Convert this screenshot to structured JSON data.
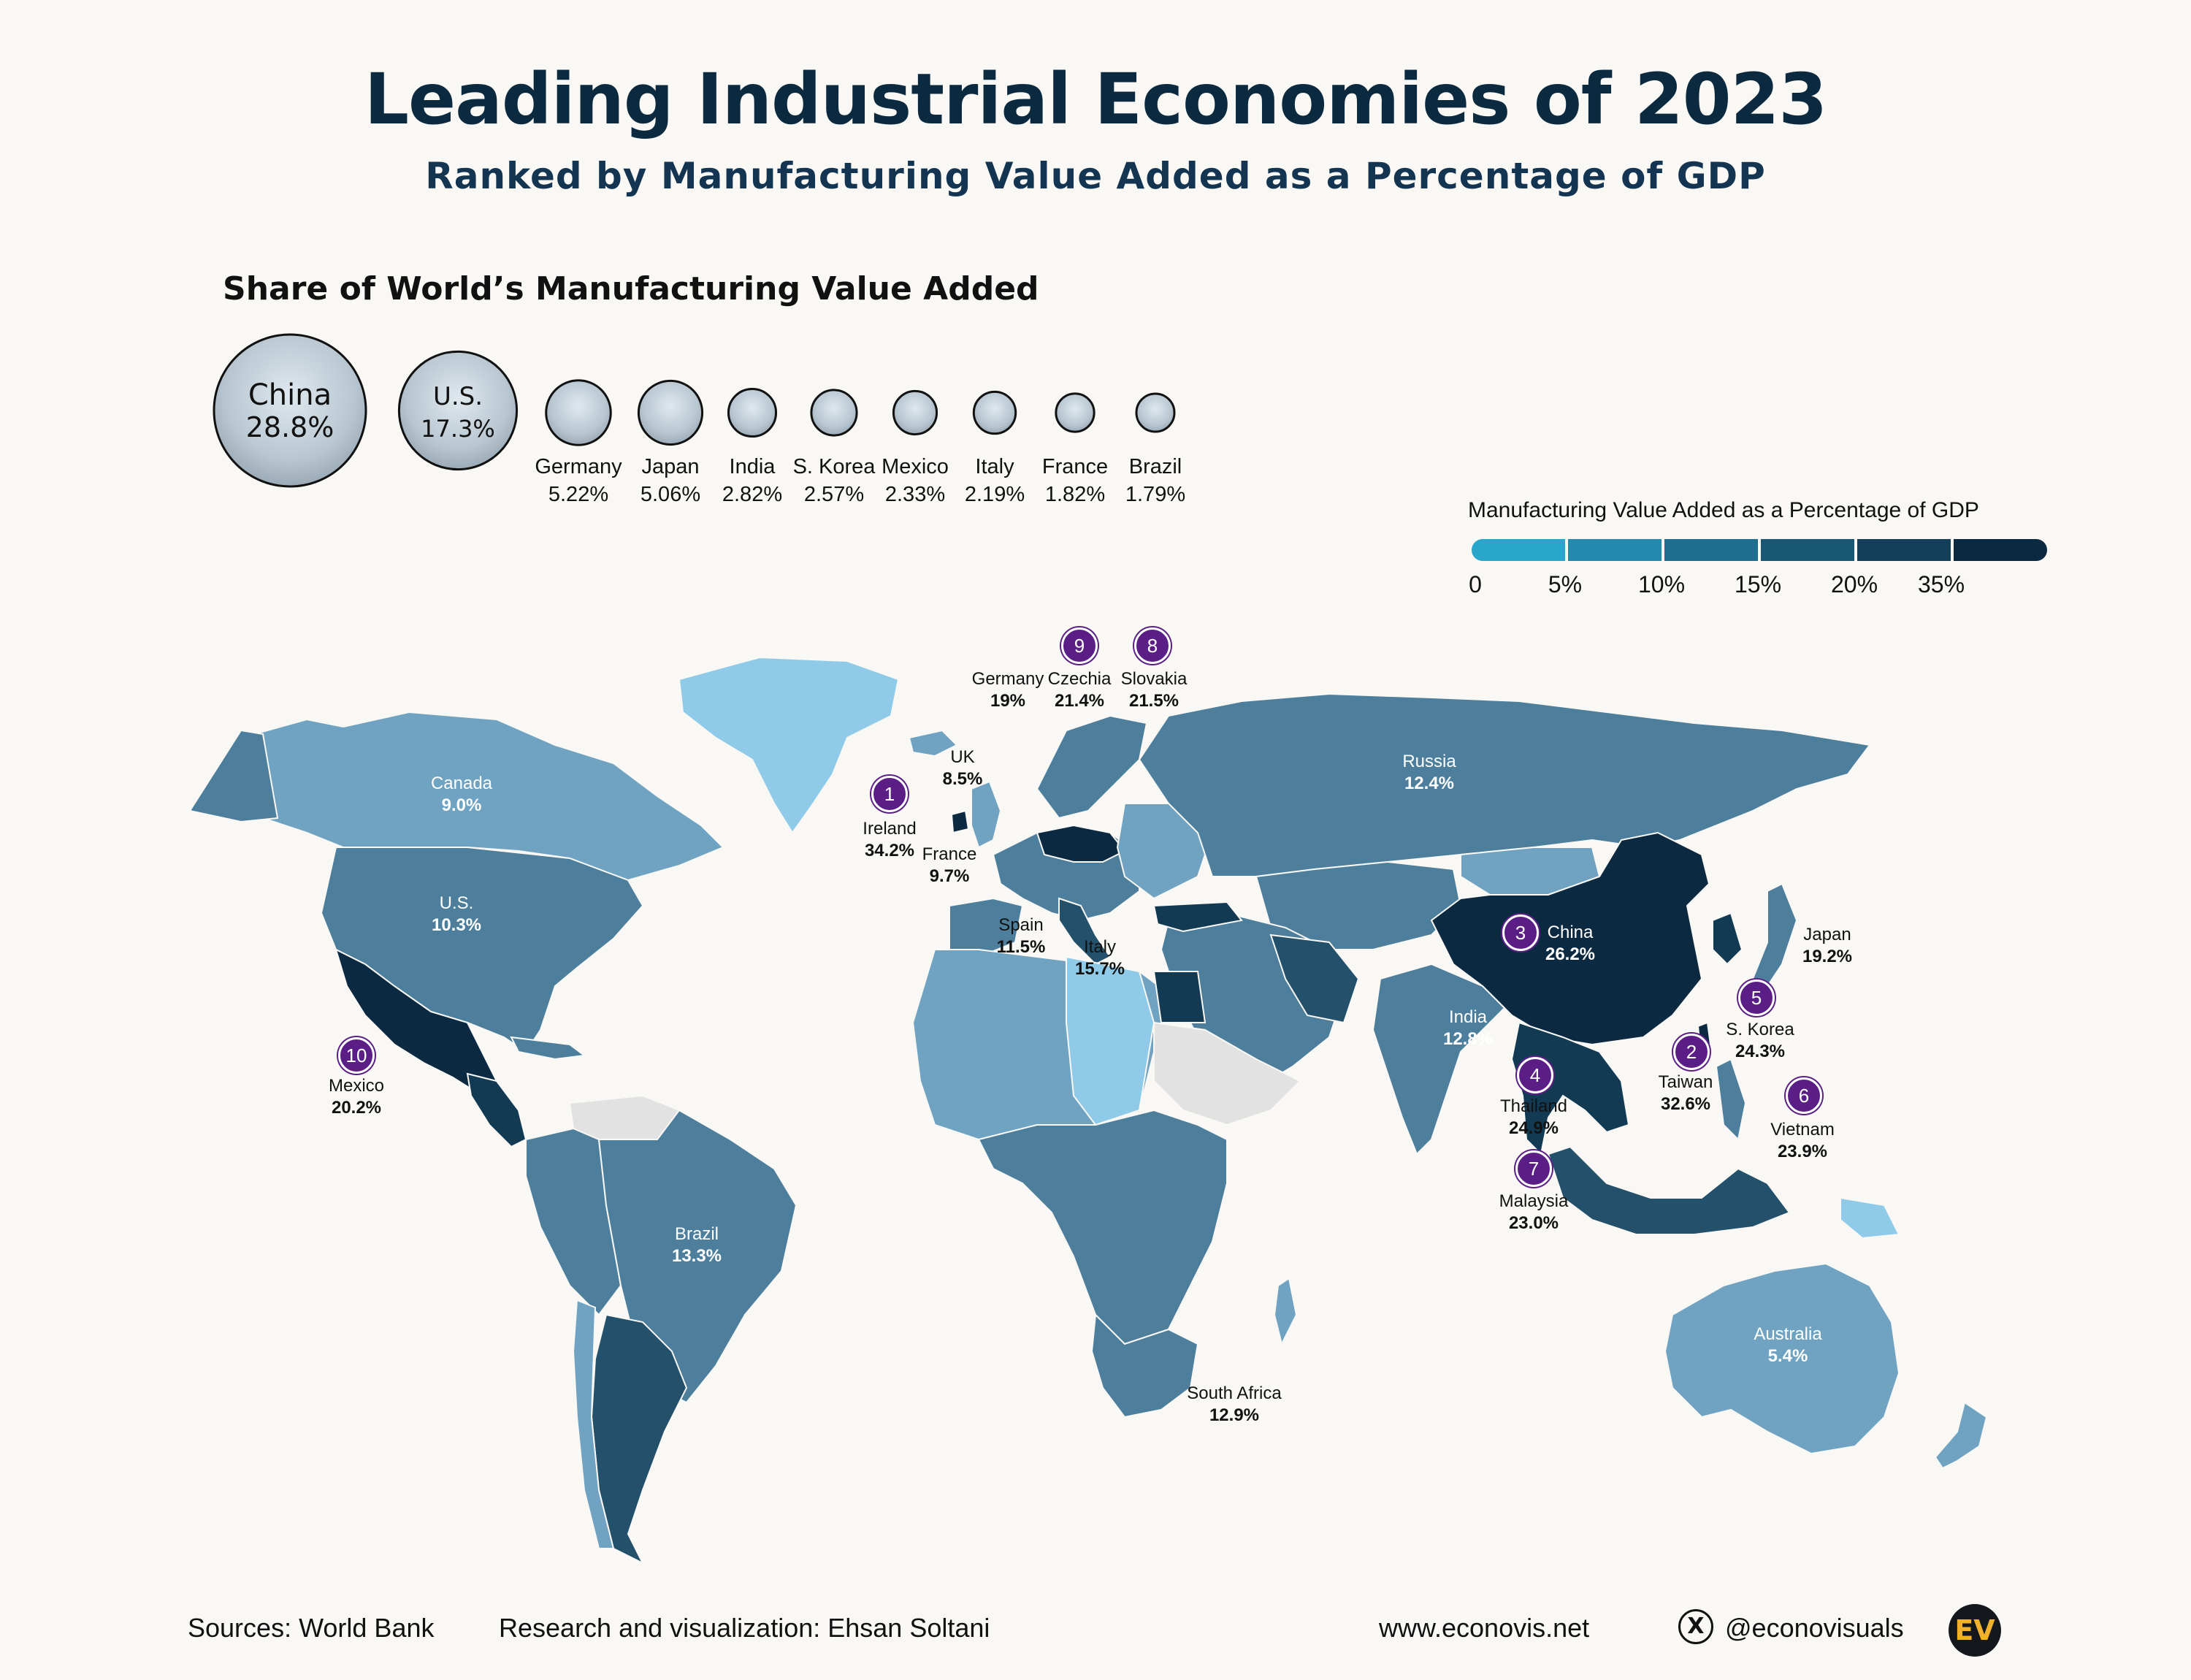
{
  "header": {
    "title": "Leading Industrial Economies of 2023",
    "subtitle": "Ranked by Manufacturing Value Added as a Percentage of GDP"
  },
  "bubbles": {
    "heading": "Share of World’s Manufacturing Value Added",
    "items": [
      {
        "name": "China",
        "value": "28.8%",
        "share": 28.8
      },
      {
        "name": "U.S.",
        "value": "17.3%",
        "share": 17.3
      },
      {
        "name": "Germany",
        "value": "5.22%",
        "share": 5.22
      },
      {
        "name": "Japan",
        "value": "5.06%",
        "share": 5.06
      },
      {
        "name": "India",
        "value": "2.82%",
        "share": 2.82
      },
      {
        "name": "S. Korea",
        "value": "2.57%",
        "share": 2.57
      },
      {
        "name": "Mexico",
        "value": "2.33%",
        "share": 2.33
      },
      {
        "name": "Italy",
        "value": "2.19%",
        "share": 2.19
      },
      {
        "name": "France",
        "value": "1.82%",
        "share": 1.82
      },
      {
        "name": "Brazil",
        "value": "1.79%",
        "share": 1.79
      }
    ]
  },
  "legend": {
    "title": "Manufacturing Value Added as a Percentage of GDP",
    "ticks": [
      "0",
      "5%",
      "10%",
      "15%",
      "20%",
      "35%"
    ],
    "colors": [
      "#2aa5cc",
      "#2389ad",
      "#1e6e90",
      "#195774",
      "#123f57",
      "#0b2a42"
    ]
  },
  "colors": {
    "no_data": "#e2e2e2",
    "very_light": "#8fcbe8",
    "light": "#6fa3c1",
    "mid": "#4d7f9c",
    "midDark": "#23506a",
    "dark": "#123a53",
    "darkest": "#0b2a42",
    "rank": "#5b1e86"
  },
  "chart_data": {
    "type": "choropleth",
    "title": "Leading Industrial Economies of 2023",
    "subtitle": "Ranked by Manufacturing Value Added as a Percentage of GDP",
    "legend_title": "Manufacturing Value Added as a Percentage of GDP",
    "legend_bins": [
      "0",
      "5%",
      "10%",
      "15%",
      "20%",
      "35%"
    ],
    "countries": [
      {
        "name": "Ireland",
        "value": "34.2%",
        "rank": "1"
      },
      {
        "name": "Taiwan",
        "value": "32.6%",
        "rank": "2"
      },
      {
        "name": "China",
        "value": "26.2%",
        "rank": "3"
      },
      {
        "name": "Thailand",
        "value": "24.9%",
        "rank": "4"
      },
      {
        "name": "S. Korea",
        "value": "24.3%",
        "rank": "5"
      },
      {
        "name": "Vietnam",
        "value": "23.9%",
        "rank": "6"
      },
      {
        "name": "Malaysia",
        "value": "23.0%",
        "rank": "7"
      },
      {
        "name": "Slovakia",
        "value": "21.5%",
        "rank": "8"
      },
      {
        "name": "Czechia",
        "value": "21.4%",
        "rank": "9"
      },
      {
        "name": "Mexico",
        "value": "20.2%",
        "rank": "10"
      },
      {
        "name": "Japan",
        "value": "19.2%"
      },
      {
        "name": "Germany",
        "value": "19%"
      },
      {
        "name": "Italy",
        "value": "15.7%"
      },
      {
        "name": "Brazil",
        "value": "13.3%"
      },
      {
        "name": "South Africa",
        "value": "12.9%"
      },
      {
        "name": "India",
        "value": "12.8%"
      },
      {
        "name": "Russia",
        "value": "12.4%"
      },
      {
        "name": "Spain",
        "value": "11.5%"
      },
      {
        "name": "U.S.",
        "value": "10.3%"
      },
      {
        "name": "France",
        "value": "9.7%"
      },
      {
        "name": "Canada",
        "value": "9.0%"
      },
      {
        "name": "UK",
        "value": "8.5%"
      },
      {
        "name": "Australia",
        "value": "5.4%"
      }
    ]
  },
  "footer": {
    "source": "Sources: World Bank",
    "credit": "Research and visualization: Ehsan Soltani",
    "website": "www.econovis.net",
    "social_handle": "@econovisuals",
    "social_icon": "x-logo-icon",
    "x_glyph": "X",
    "logo_text": "EV"
  }
}
